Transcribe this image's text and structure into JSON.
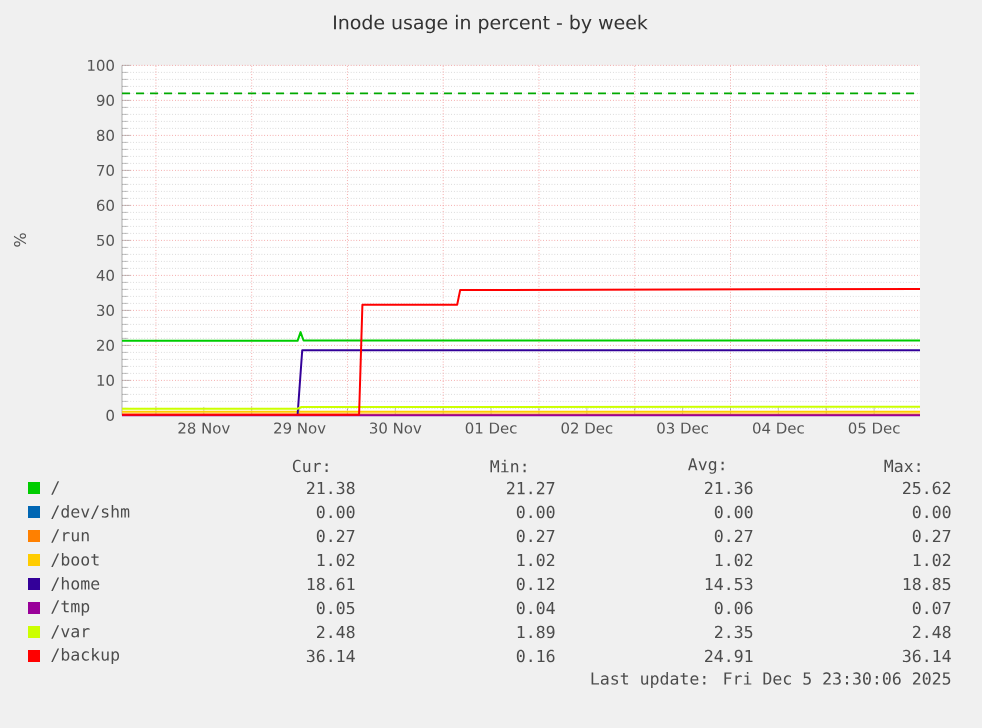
{
  "chart_data": {
    "type": "line",
    "title": "Inode usage in percent - by week",
    "ylabel": "%",
    "xlim": [
      "2025-11-27T15:30",
      "2025-12-05T23:30"
    ],
    "ylim": [
      0,
      100
    ],
    "xticks": [
      {
        "value": "2025-11-28T00:00",
        "label": null
      },
      {
        "value": "2025-11-28T12:00",
        "label": "28 Nov"
      },
      {
        "value": "2025-11-29T00:00",
        "label": null
      },
      {
        "value": "2025-11-29T12:00",
        "label": "29 Nov"
      },
      {
        "value": "2025-11-30T00:00",
        "label": null
      },
      {
        "value": "2025-11-30T12:00",
        "label": "30 Nov"
      },
      {
        "value": "2025-12-01T00:00",
        "label": null
      },
      {
        "value": "2025-12-01T12:00",
        "label": "01 Dec"
      },
      {
        "value": "2025-12-02T00:00",
        "label": null
      },
      {
        "value": "2025-12-02T12:00",
        "label": "02 Dec"
      },
      {
        "value": "2025-12-03T00:00",
        "label": null
      },
      {
        "value": "2025-12-03T12:00",
        "label": "03 Dec"
      },
      {
        "value": "2025-12-04T00:00",
        "label": null
      },
      {
        "value": "2025-12-04T12:00",
        "label": "04 Dec"
      },
      {
        "value": "2025-12-05T00:00",
        "label": null
      },
      {
        "value": "2025-12-05T12:00",
        "label": "05 Dec"
      }
    ],
    "yticks": [
      0,
      10,
      20,
      30,
      40,
      50,
      60,
      70,
      80,
      90,
      100
    ],
    "grid": true,
    "legend": "bottom",
    "ref_lines": [
      {
        "axis": "y",
        "value": 92,
        "color": "#00aa00",
        "line_style": "dashed"
      }
    ],
    "series": [
      {
        "name": "/",
        "color": "#00cc00",
        "x": [
          "2025-11-27T15:30",
          "2025-11-29T11:30",
          "2025-11-29T12:15",
          "2025-11-29T13:00",
          "2025-12-05T23:30"
        ],
        "values": [
          21.3,
          21.3,
          23.8,
          21.4,
          21.38
        ]
      },
      {
        "name": "/dev/shm",
        "color": "#0066b3"
      },
      {
        "name": "/run",
        "color": "#ff8000",
        "x": [
          "2025-11-27T15:30",
          "2025-12-05T23:30"
        ],
        "values": [
          0.27,
          0.27
        ]
      },
      {
        "name": "/boot",
        "color": "#ffcc00",
        "x": [
          "2025-11-27T15:30",
          "2025-12-05T23:30"
        ],
        "values": [
          1.02,
          1.02
        ]
      },
      {
        "name": "/home",
        "color": "#330099",
        "x": [
          "2025-11-27T15:30",
          "2025-11-29T11:30",
          "2025-11-29T12:40",
          "2025-12-05T23:30"
        ],
        "values": [
          0.12,
          0.12,
          18.6,
          18.61
        ]
      },
      {
        "name": "/tmp",
        "color": "#990099",
        "x": [
          "2025-11-27T15:30",
          "2025-12-05T23:30"
        ],
        "values": [
          0.05,
          0.05
        ]
      },
      {
        "name": "/var",
        "color": "#ccff00",
        "x": [
          "2025-11-27T15:30",
          "2025-11-29T11:30",
          "2025-11-29T12:30",
          "2025-12-05T23:30"
        ],
        "values": [
          1.9,
          1.9,
          2.4,
          2.48
        ]
      },
      {
        "name": "/backup",
        "color": "#ff0000",
        "x": [
          "2025-11-27T15:30",
          "2025-11-30T02:55",
          "2025-11-30T03:45",
          "2025-12-01T03:30",
          "2025-12-01T04:15",
          "2025-12-05T23:30"
        ],
        "values": [
          0.16,
          0.16,
          31.6,
          31.6,
          35.8,
          36.14
        ]
      }
    ],
    "annotations": [
      "Cur:",
      "Min:",
      "Avg:",
      "Max:",
      "21.38",
      "21.27",
      "21.36",
      "25.62",
      "0.00",
      "0.00",
      "0.00",
      "0.00",
      "0.27",
      "0.27",
      "0.27",
      "0.27",
      "1.02",
      "1.02",
      "1.02",
      "1.02",
      "18.61",
      "0.12",
      "14.53",
      "18.85",
      "0.05",
      "0.04",
      "0.06",
      "0.07",
      "2.48",
      "1.89",
      "2.35",
      "2.48",
      "36.14",
      "0.16",
      "24.91",
      "36.14",
      "Last update: Fri Dec  5 23:30:06 2025"
    ]
  }
}
